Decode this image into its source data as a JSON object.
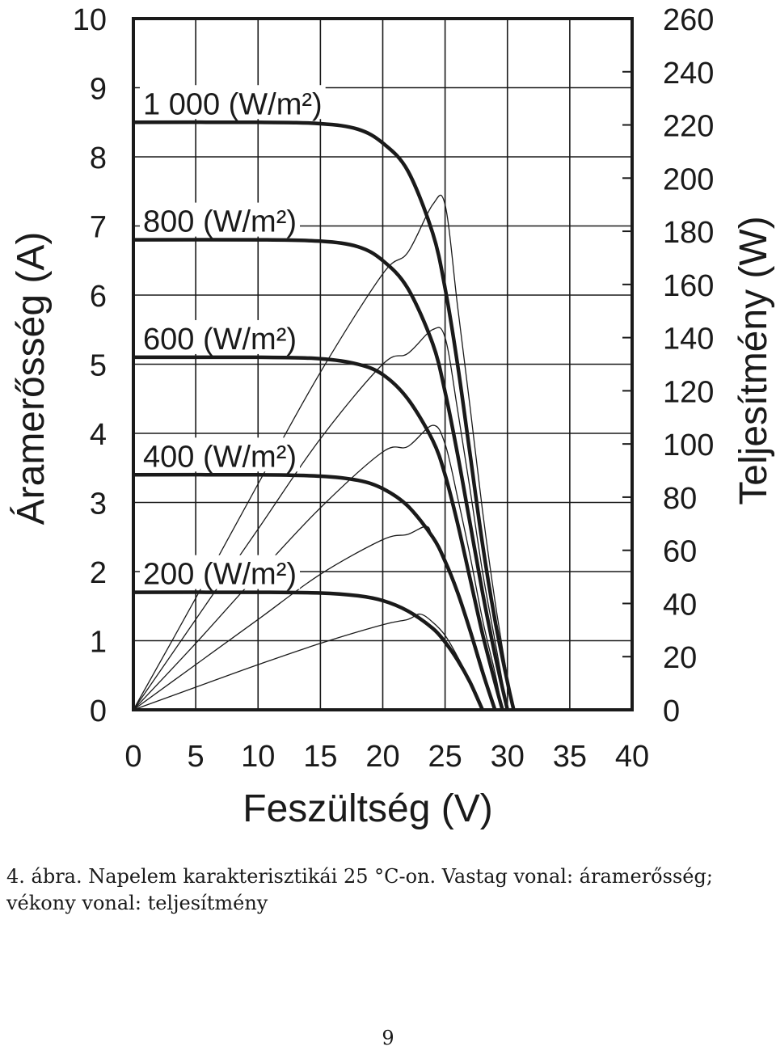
{
  "chart_data": {
    "type": "line",
    "xlabel": "Feszültség (V)",
    "ylabel": "Áramerősség (A)",
    "y2label": "Teljesítmény (W)",
    "xlim": [
      0,
      40
    ],
    "ylim": [
      0,
      10
    ],
    "y2lim": [
      0,
      260
    ],
    "x_ticks": [
      "0",
      "5",
      "10",
      "15",
      "20",
      "25",
      "30",
      "35",
      "40"
    ],
    "y_ticks": [
      "0",
      "1",
      "2",
      "3",
      "4",
      "5",
      "6",
      "7",
      "8",
      "9",
      "10"
    ],
    "y2_ticks": [
      "0",
      "20",
      "40",
      "60",
      "80",
      "100",
      "120",
      "140",
      "160",
      "180",
      "200",
      "220",
      "240",
      "260"
    ],
    "grid": true,
    "current_series": [
      {
        "label": "1 000 (W/m²)",
        "isc": 8.5,
        "voc": 30.5,
        "points": [
          [
            0,
            8.5
          ],
          [
            10,
            8.5
          ],
          [
            15,
            8.48
          ],
          [
            18,
            8.4
          ],
          [
            20,
            8.2
          ],
          [
            22,
            7.8
          ],
          [
            24,
            6.9
          ],
          [
            25,
            6.1
          ],
          [
            26,
            5.0
          ],
          [
            27,
            3.7
          ],
          [
            28,
            2.4
          ],
          [
            29,
            1.3
          ],
          [
            30,
            0.4
          ],
          [
            30.5,
            0
          ]
        ]
      },
      {
        "label": "800 (W/m²)",
        "isc": 6.8,
        "voc": 30.0,
        "points": [
          [
            0,
            6.8
          ],
          [
            10,
            6.8
          ],
          [
            15,
            6.78
          ],
          [
            18,
            6.7
          ],
          [
            20,
            6.5
          ],
          [
            22,
            6.1
          ],
          [
            24,
            5.3
          ],
          [
            25,
            4.6
          ],
          [
            26,
            3.7
          ],
          [
            27,
            2.7
          ],
          [
            28,
            1.7
          ],
          [
            29,
            0.8
          ],
          [
            30,
            0
          ]
        ]
      },
      {
        "label": "600 (W/m²)",
        "isc": 5.1,
        "voc": 29.6,
        "points": [
          [
            0,
            5.1
          ],
          [
            10,
            5.1
          ],
          [
            15,
            5.08
          ],
          [
            18,
            5.0
          ],
          [
            20,
            4.85
          ],
          [
            22,
            4.5
          ],
          [
            24,
            3.9
          ],
          [
            25,
            3.4
          ],
          [
            26,
            2.7
          ],
          [
            27,
            1.9
          ],
          [
            28,
            1.1
          ],
          [
            29,
            0.4
          ],
          [
            29.6,
            0
          ]
        ]
      },
      {
        "label": "400 (W/m²)",
        "isc": 3.4,
        "voc": 29.0,
        "points": [
          [
            0,
            3.4
          ],
          [
            10,
            3.4
          ],
          [
            15,
            3.38
          ],
          [
            18,
            3.32
          ],
          [
            20,
            3.2
          ],
          [
            22,
            2.95
          ],
          [
            24,
            2.5
          ],
          [
            25,
            2.15
          ],
          [
            26,
            1.7
          ],
          [
            27,
            1.15
          ],
          [
            28,
            0.55
          ],
          [
            29,
            0
          ]
        ]
      },
      {
        "label": "200 (W/m²)",
        "isc": 1.7,
        "voc": 28.0,
        "points": [
          [
            0,
            1.7
          ],
          [
            10,
            1.7
          ],
          [
            15,
            1.69
          ],
          [
            18,
            1.65
          ],
          [
            20,
            1.58
          ],
          [
            22,
            1.43
          ],
          [
            24,
            1.18
          ],
          [
            25,
            0.98
          ],
          [
            26,
            0.72
          ],
          [
            27,
            0.4
          ],
          [
            28,
            0
          ]
        ]
      }
    ],
    "power_series": [
      {
        "pmax_v": 24.5,
        "pmax_w": 190,
        "points": [
          [
            0,
            0
          ],
          [
            5,
            42
          ],
          [
            10,
            85
          ],
          [
            15,
            127
          ],
          [
            20,
            164
          ],
          [
            22,
            172
          ],
          [
            24,
            190
          ],
          [
            25,
            190
          ],
          [
            26,
            152
          ],
          [
            27,
            114
          ],
          [
            28,
            75
          ],
          [
            29,
            41
          ],
          [
            30,
            12
          ],
          [
            30.5,
            0
          ]
        ]
      },
      {
        "pmax_v": 24.3,
        "pmax_w": 143,
        "points": [
          [
            0,
            0
          ],
          [
            5,
            34
          ],
          [
            10,
            68
          ],
          [
            15,
            102
          ],
          [
            20,
            130
          ],
          [
            22,
            134
          ],
          [
            24,
            143
          ],
          [
            25,
            140
          ],
          [
            26,
            113
          ],
          [
            27,
            83
          ],
          [
            28,
            52
          ],
          [
            29,
            26
          ],
          [
            30,
            0
          ]
        ]
      },
      {
        "pmax_v": 24.0,
        "pmax_w": 107,
        "points": [
          [
            0,
            0
          ],
          [
            5,
            25
          ],
          [
            10,
            51
          ],
          [
            15,
            76
          ],
          [
            20,
            97
          ],
          [
            22,
            99
          ],
          [
            24,
            107
          ],
          [
            25,
            100
          ],
          [
            26,
            80
          ],
          [
            27,
            58
          ],
          [
            28,
            34
          ],
          [
            29,
            14
          ],
          [
            29.6,
            0
          ]
        ]
      },
      {
        "pmax_v": 23.5,
        "pmax_w": 69,
        "points": [
          [
            0,
            0
          ],
          [
            5,
            17
          ],
          [
            10,
            34
          ],
          [
            15,
            51
          ],
          [
            20,
            64
          ],
          [
            22,
            66
          ],
          [
            23.5,
            69
          ],
          [
            24,
            65
          ],
          [
            25,
            57
          ],
          [
            26,
            44
          ],
          [
            27,
            31
          ],
          [
            28,
            16
          ],
          [
            29,
            0
          ]
        ]
      },
      {
        "pmax_v": 23.0,
        "pmax_w": 36,
        "points": [
          [
            0,
            0
          ],
          [
            5,
            8.5
          ],
          [
            10,
            17
          ],
          [
            15,
            25
          ],
          [
            20,
            32
          ],
          [
            22,
            34
          ],
          [
            23,
            36
          ],
          [
            24,
            33
          ],
          [
            25,
            28
          ],
          [
            26,
            20
          ],
          [
            27,
            11
          ],
          [
            28,
            0
          ]
        ]
      }
    ]
  },
  "caption": "4. ábra. Napelem karakterisztikái 25 °C-on. Vastag vonal: áramerősség; vékony vonal: teljesítmény",
  "page_number": "9"
}
